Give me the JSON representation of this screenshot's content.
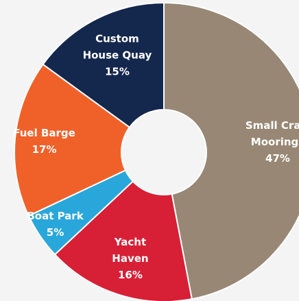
{
  "chart_data": {
    "type": "pie",
    "variant": "donut",
    "title": "",
    "slices": [
      {
        "name": "Small Craft Moorings",
        "label_lines": [
          "Small Craft",
          "Moorings",
          "47%"
        ],
        "value": 47,
        "color": "#978774"
      },
      {
        "name": "Yacht Haven",
        "label_lines": [
          "Yacht",
          "Haven",
          "16%"
        ],
        "value": 16,
        "color": "#d71f36"
      },
      {
        "name": "Boat Park",
        "label_lines": [
          "Boat Park",
          "5%"
        ],
        "value": 5,
        "color": "#29a7da"
      },
      {
        "name": "Fuel Barge",
        "label_lines": [
          "Fuel Barge",
          "17%"
        ],
        "value": 17,
        "color": "#f0612a"
      },
      {
        "name": "Custom House Quay",
        "label_lines": [
          "Custom",
          "House Quay",
          "15%"
        ],
        "value": 15,
        "color": "#14274d"
      }
    ],
    "start": "12 o'clock",
    "direction": "clockwise",
    "separator_color": "#ffffff"
  }
}
